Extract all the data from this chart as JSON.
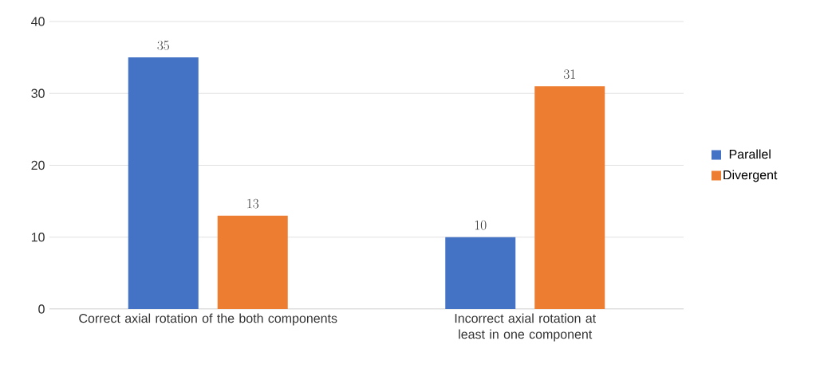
{
  "chart_data": {
    "type": "bar",
    "categories": [
      "Correct axial rotation of the both components",
      "Incorrect axial rotation at least in one component"
    ],
    "series": [
      {
        "name": "Parallel",
        "color": "#4472c4",
        "values": [
          35,
          10
        ]
      },
      {
        "name": "Divergent",
        "color": "#ed7d31",
        "values": [
          13,
          31
        ]
      }
    ],
    "ylim": [
      0,
      40
    ],
    "yticks": [
      0,
      10,
      20,
      30,
      40
    ],
    "grid": "y",
    "legend": "right",
    "data_labels": true
  }
}
